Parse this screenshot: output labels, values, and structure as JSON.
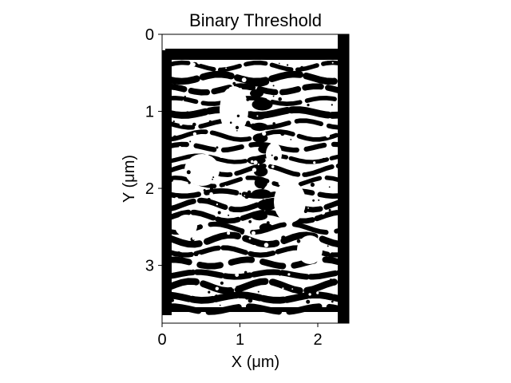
{
  "chart_data": {
    "type": "heatmap",
    "title": "Binary Threshold",
    "xlabel": "X (μm)",
    "ylabel": "Y (μm)",
    "xlim": [
      0,
      2.4
    ],
    "ylim": [
      3.75,
      0
    ],
    "x_ticks": [
      {
        "value": 0,
        "label": "0"
      },
      {
        "value": 1,
        "label": "1"
      },
      {
        "value": 2,
        "label": "2"
      }
    ],
    "y_ticks": [
      {
        "value": 0,
        "label": "0"
      },
      {
        "value": 1,
        "label": "1"
      },
      {
        "value": 2,
        "label": "2"
      },
      {
        "value": 3,
        "label": "3"
      }
    ],
    "colormap": [
      "#ffffff",
      "#000000"
    ],
    "description_values": "binary image (0 = white, 1 = black): wavy horizontal black stripes with white gaps, bright region near upper-center"
  }
}
